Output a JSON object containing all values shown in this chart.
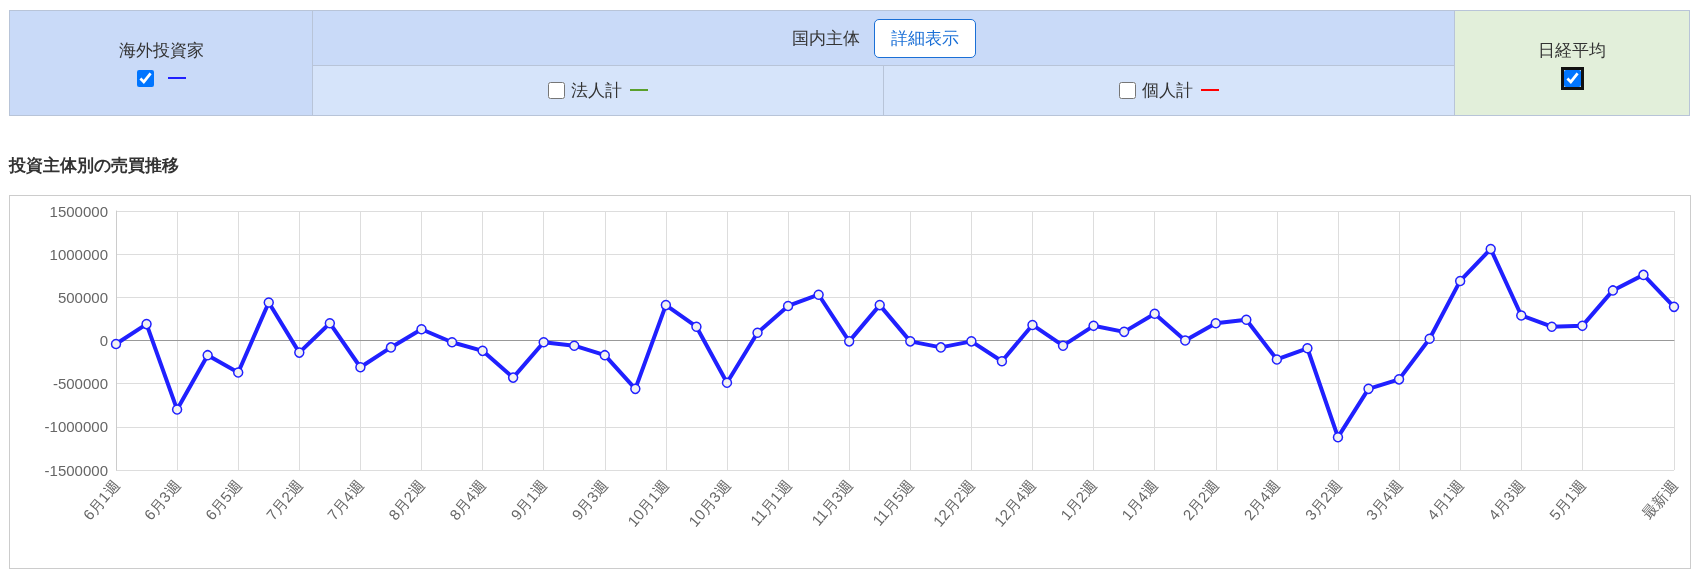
{
  "chart_data": {
    "type": "line",
    "title": "投資主体別の売買推移",
    "categories": [
      "6月1週",
      null,
      "6月3週",
      null,
      "6月5週",
      null,
      "7月2週",
      null,
      "7月4週",
      null,
      "8月2週",
      null,
      "8月4週",
      null,
      "9月1週",
      null,
      "9月3週",
      null,
      "10月1週",
      null,
      "10月3週",
      null,
      "11月1週",
      null,
      "11月3週",
      null,
      "11月5週",
      null,
      "12月2週",
      null,
      "12月4週",
      null,
      "1月2週",
      null,
      "1月4週",
      null,
      "2月2週",
      null,
      "2月4週",
      null,
      "3月2週",
      null,
      "3月4週",
      null,
      "4月1週",
      null,
      "4月3週",
      null,
      "5月1週",
      null,
      null,
      "最新週"
    ],
    "series": [
      {
        "name": "海外投資家",
        "color": "#2020ff",
        "values": [
          -40000,
          190000,
          -800000,
          -170000,
          -370000,
          440000,
          -140000,
          200000,
          -310000,
          -80000,
          130000,
          -20000,
          -120000,
          -430000,
          -20000,
          -60000,
          -170000,
          -560000,
          410000,
          160000,
          -490000,
          90000,
          400000,
          530000,
          -10000,
          410000,
          -10000,
          -80000,
          -10000,
          -240000,
          180000,
          -60000,
          170000,
          100000,
          310000,
          0,
          200000,
          240000,
          -220000,
          -90000,
          -1120000,
          -560000,
          -450000,
          20000,
          690000,
          1060000,
          290000,
          160000,
          170000,
          580000,
          760000,
          390000
        ]
      }
    ],
    "ylim": [
      -1500000,
      1500000
    ],
    "yticks": [
      -1500000,
      -1000000,
      -500000,
      0,
      500000,
      1000000,
      1500000
    ],
    "grid": true,
    "legend": "top",
    "marker": "circle",
    "line_style": "solid",
    "annotations": [
      "国内主体",
      "詳細表示",
      "法人計",
      "個人計",
      "日経平均"
    ]
  }
}
